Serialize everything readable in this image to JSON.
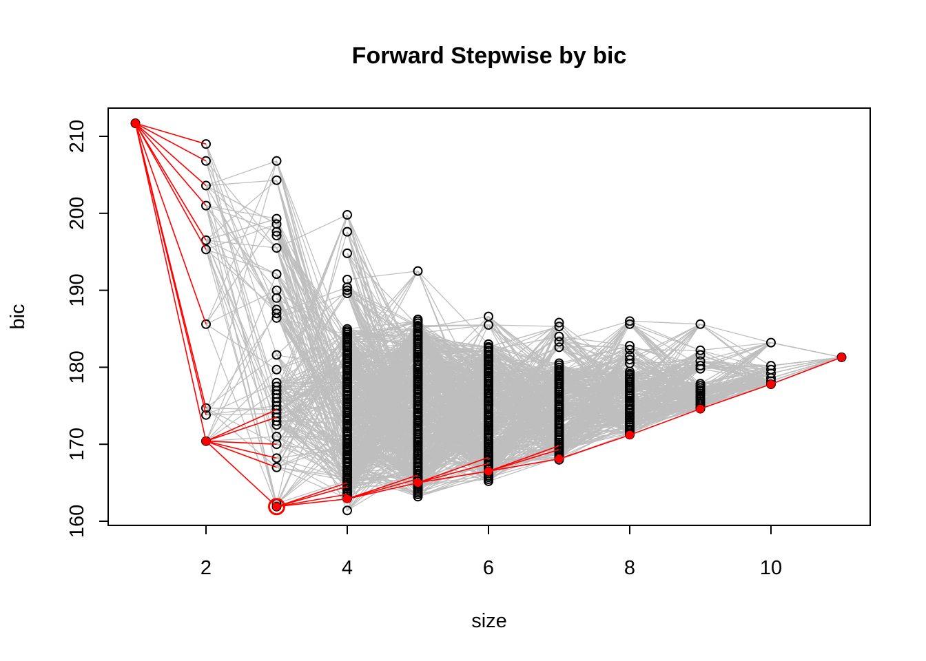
{
  "chart_data": {
    "type": "scatter",
    "title": "Forward Stepwise by bic",
    "xlabel": "size",
    "ylabel": "bic",
    "xlim": [
      0.6,
      11.4
    ],
    "ylim": [
      159.5,
      213.5
    ],
    "xticks": [
      2,
      4,
      6,
      8,
      10
    ],
    "yticks": [
      160,
      170,
      180,
      190,
      200,
      210
    ],
    "colors": {
      "points": "#000000",
      "paths": "#BEBEBE",
      "best": "#FF0000"
    },
    "points_by_size": {
      "1": [
        211.7
      ],
      "2": [
        209.0,
        206.8,
        203.6,
        201.0,
        196.5,
        195.3,
        185.6,
        174.7,
        173.8,
        170.4
      ],
      "3": [
        206.8,
        204.3,
        199.3,
        198.6,
        197.6,
        197.1,
        195.5,
        192.1,
        190.0,
        189.0,
        187.5,
        187.0,
        186.4,
        181.6,
        179.7,
        178.0,
        177.5,
        177.0,
        176.5,
        176.0,
        175.5,
        175.0,
        174.5,
        174.0,
        173.5,
        173.0,
        172.5,
        171.0,
        170.0,
        168.2,
        167.0,
        162.3,
        161.9
      ],
      "4": [
        199.8,
        197.6,
        194.8,
        191.4,
        190.4,
        190.0,
        189.6,
        161.4
      ],
      "5": [
        192.5
      ],
      "6": [
        186.6,
        185.5
      ],
      "7": [
        185.8,
        185.3,
        184.0,
        183.3,
        182.6
      ],
      "8": [
        186.0,
        185.6,
        182.8,
        182.3,
        181.5,
        181.0,
        180.5
      ],
      "9": [
        185.6,
        182.2,
        181.6,
        180.8,
        180.2,
        179.8
      ],
      "10": [
        183.2,
        180.2,
        179.7,
        179.2,
        178.6,
        178.2,
        177.8
      ],
      "11": [
        181.3
      ]
    },
    "dense_ranges_by_size": {
      "4": [
        163.0,
        185.0
      ],
      "5": [
        163.2,
        186.2
      ],
      "6": [
        165.2,
        183.0
      ],
      "7": [
        168.0,
        180.5
      ],
      "8": [
        171.2,
        179.5
      ],
      "9": [
        174.6,
        178.0
      ]
    },
    "best_path": [
      {
        "size": 1,
        "bic": 211.7
      },
      {
        "size": 2,
        "bic": 170.4
      },
      {
        "size": 3,
        "bic": 161.9
      },
      {
        "size": 4,
        "bic": 162.9
      },
      {
        "size": 5,
        "bic": 165.0
      },
      {
        "size": 6,
        "bic": 166.5
      },
      {
        "size": 7,
        "bic": 168.1
      },
      {
        "size": 8,
        "bic": 171.2
      },
      {
        "size": 9,
        "bic": 174.6
      },
      {
        "size": 10,
        "bic": 177.8
      },
      {
        "size": 11,
        "bic": 181.3
      }
    ],
    "red_candidate_edges": {
      "1": [
        209.0,
        206.8,
        203.6,
        201.0,
        196.5,
        195.3,
        185.6,
        174.7,
        173.8,
        170.4
      ],
      "2": [
        174.5,
        173.5,
        170.0,
        168.2,
        167.0,
        161.9
      ],
      "3": [
        165.0,
        164.5,
        163.5,
        162.9
      ],
      "4": [
        166.0,
        165.5,
        165.0
      ],
      "5": [
        168.3,
        167.5,
        166.5
      ],
      "6": [
        169.8,
        169.3,
        168.1
      ],
      "7": [
        171.2
      ],
      "8": [
        174.6
      ],
      "9": [
        177.8
      ],
      "10": [
        181.3
      ]
    },
    "selected": {
      "size": 3,
      "bic": 161.9
    },
    "grid": false
  }
}
